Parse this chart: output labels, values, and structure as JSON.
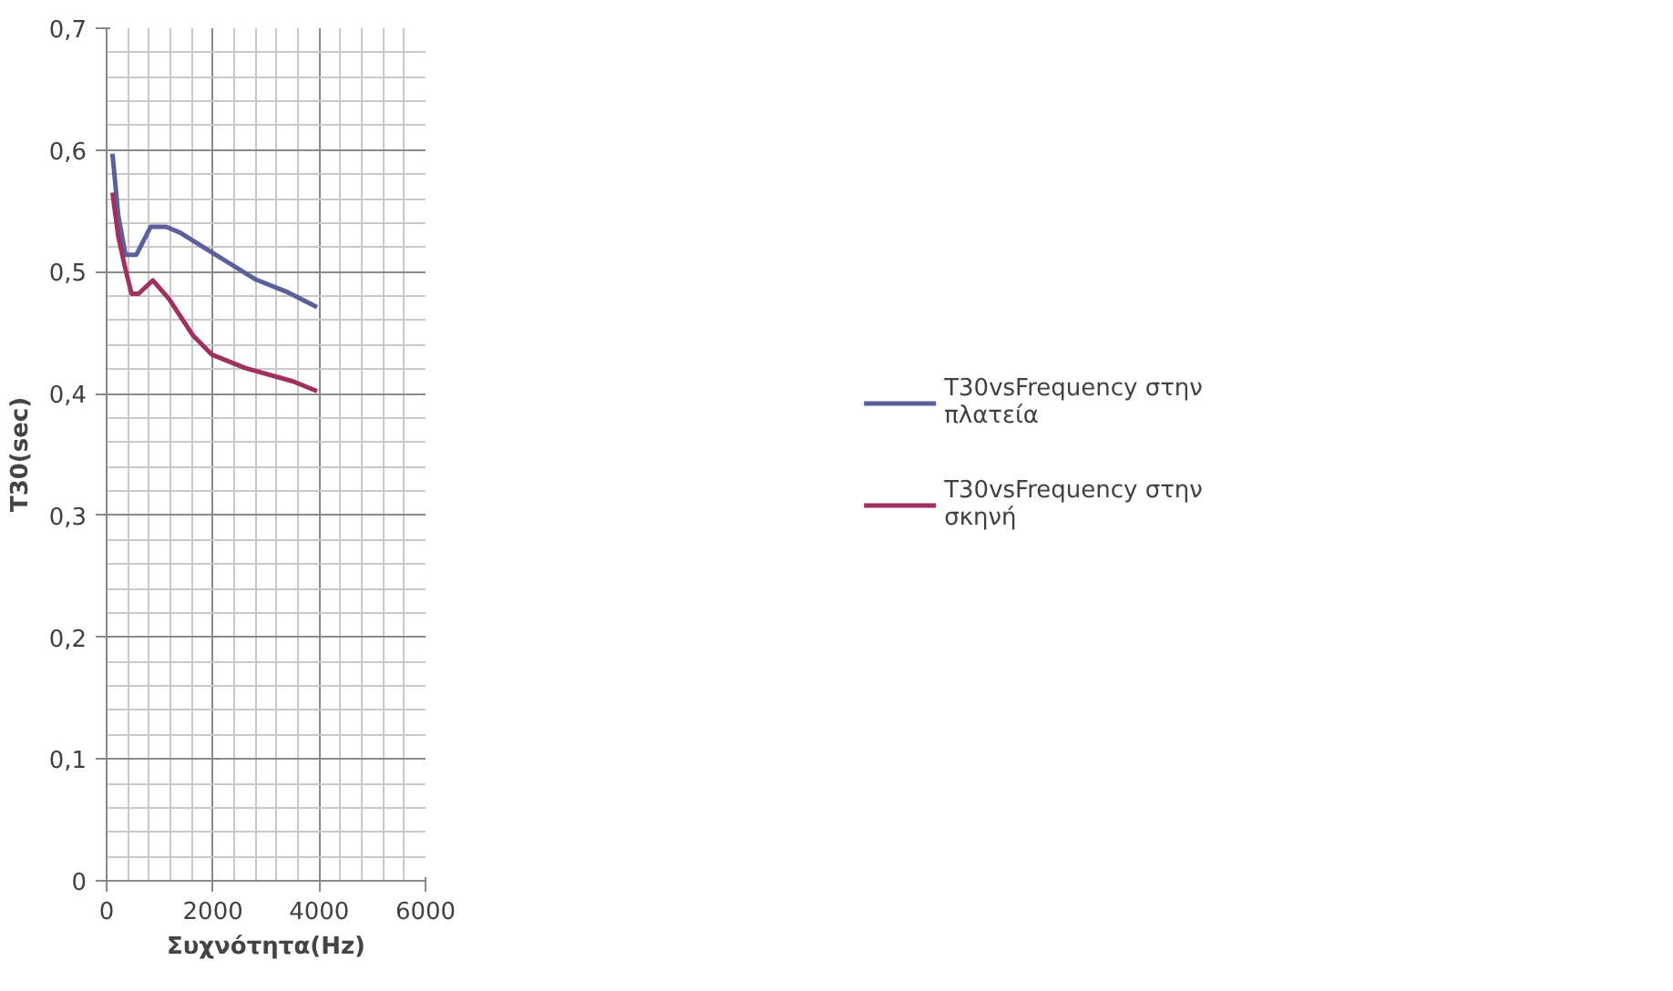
{
  "chart_data": {
    "type": "line",
    "xlabel": "Συχνότητα(Hz)",
    "ylabel": "T30(sec)",
    "xlim": [
      0,
      6000
    ],
    "xticks": [
      0,
      2000,
      4000,
      6000
    ],
    "ylim": [
      0,
      0.7
    ],
    "yticks": [
      {
        "value": 0,
        "label": "0"
      },
      {
        "value": 0.1,
        "label": "0,1"
      },
      {
        "value": 0.2,
        "label": "0,2"
      },
      {
        "value": 0.3,
        "label": "0,3"
      },
      {
        "value": 0.4,
        "label": "0,4"
      },
      {
        "value": 0.5,
        "label": "0,5"
      },
      {
        "value": 0.6,
        "label": "0,6"
      },
      {
        "value": 0.7,
        "label": "0,7"
      }
    ],
    "grid": true,
    "legend": "right",
    "marker": "none",
    "line_style": "solid",
    "series": [
      {
        "name": "T30vsFrequency στην πλατεία",
        "color": "#5b5f9a",
        "x": [
          110,
          220,
          355,
          560,
          830,
          1120,
          1390,
          1980,
          2790,
          3420,
          3960
        ],
        "values": [
          0.597,
          0.546,
          0.514,
          0.514,
          0.537,
          0.537,
          0.532,
          0.516,
          0.494,
          0.483,
          0.471
        ]
      },
      {
        "name": "T30vsFrequency στην σκηνή",
        "color": "#a03060",
        "x": [
          110,
          220,
          355,
          470,
          600,
          870,
          1170,
          1620,
          1980,
          2610,
          3510,
          3960
        ],
        "values": [
          0.565,
          0.529,
          0.502,
          0.482,
          0.482,
          0.493,
          0.478,
          0.448,
          0.432,
          0.421,
          0.41,
          0.402
        ]
      }
    ]
  }
}
